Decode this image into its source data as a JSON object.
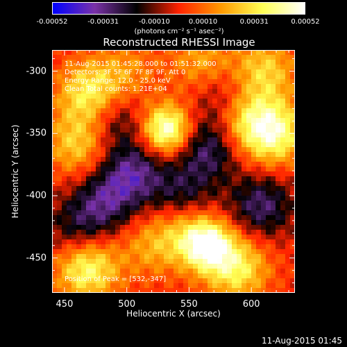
{
  "colorbar": {
    "ticks": [
      "-0.00052",
      "-0.00031",
      "-0.00010",
      "0.00010",
      "0.00031",
      "0.00052"
    ],
    "unit": "(photons cm⁻² s⁻¹ asec⁻²)"
  },
  "info": {
    "time_range": "11-Aug-2015 01:45:28.000 to 01:51:32.000",
    "detectors": "Detectors: 3F 5F 6F 7F 8F 9F, Att 0",
    "energy_range": "Energy Range: 12.0 - 25.0 keV",
    "clean": "Clean     Total counts: 1.21E+04"
  },
  "peak_label": "Position of Peak = [532,-347]",
  "footer_date": "11-Aug-2015 01:45",
  "chart_data": {
    "type": "heatmap",
    "title": "Reconstructed RHESSI Image",
    "xlabel": "Heliocentric X (arcsec)",
    "ylabel": "Heliocentric Y (arcsec)",
    "xlim": [
      440,
      635
    ],
    "ylim": [
      -478,
      -283
    ],
    "x_ticks": [
      "450",
      "500",
      "550",
      "600"
    ],
    "y_ticks": [
      "-300",
      "-350",
      "-400",
      "-450"
    ],
    "colorbar_range": [
      -0.00052,
      0.00052
    ],
    "colormap": [
      "#0000ff",
      "#7a32a8",
      "#000000",
      "#ff2200",
      "#ff9900",
      "#ffff55",
      "#ffffff"
    ],
    "peak_position": [
      532,
      -347
    ],
    "hotspots": [
      {
        "x": 532,
        "y": -347,
        "value": 0.00052
      },
      {
        "x": 470,
        "y": -318,
        "value": 0.00035
      },
      {
        "x": 461,
        "y": -358,
        "value": 0.00028
      },
      {
        "x": 565,
        "y": -440,
        "value": 0.00045
      },
      {
        "x": 468,
        "y": -458,
        "value": 0.0004
      },
      {
        "x": 618,
        "y": -350,
        "value": 0.0004
      },
      {
        "x": 595,
        "y": -338,
        "value": 0.0003
      },
      {
        "x": 610,
        "y": -300,
        "value": 0.00028
      },
      {
        "x": 588,
        "y": -458,
        "value": 0.00035
      },
      {
        "x": 548,
        "y": -428,
        "value": 0.00022
      },
      {
        "x": 520,
        "y": -440,
        "value": 0.00018
      },
      {
        "x": 500,
        "y": -300,
        "value": 0.00015
      },
      {
        "x": 560,
        "y": -292,
        "value": 0.0002
      }
    ],
    "coldspots": [
      {
        "x": 565,
        "y": -362,
        "value": -0.00028
      },
      {
        "x": 505,
        "y": -382,
        "value": -0.0003
      },
      {
        "x": 482,
        "y": -405,
        "value": -0.00025
      },
      {
        "x": 608,
        "y": -408,
        "value": -0.00028
      },
      {
        "x": 545,
        "y": -400,
        "value": -0.00022
      },
      {
        "x": 460,
        "y": -428,
        "value": -0.0002
      },
      {
        "x": 490,
        "y": -340,
        "value": -0.0002
      },
      {
        "x": 580,
        "y": -322,
        "value": -0.00018
      }
    ]
  }
}
